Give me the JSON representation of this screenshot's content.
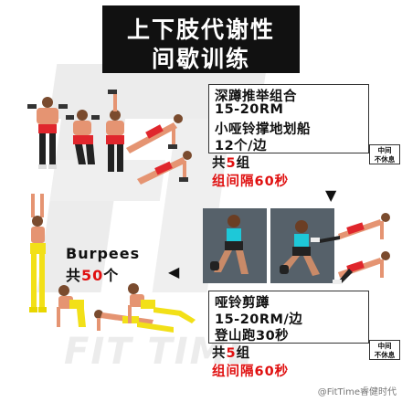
{
  "title": {
    "line1": "上下肢代谢性",
    "line2": "间歇训练"
  },
  "exercise_1": {
    "name": "深蹲推举组合",
    "reps": "15-20RM",
    "second_move": "小哑铃撑地划船",
    "count": "12个/边",
    "sets_prefix": "共",
    "sets_num": "5",
    "sets_suffix": "组",
    "rest": "组间隔60秒",
    "badge_line1": "中间",
    "badge_line2": "不休息"
  },
  "exercise_2": {
    "name": "哑铃剪蹲",
    "reps": "15-20RM/边",
    "second_move": "登山跑30秒",
    "sets_prefix": "共",
    "sets_num": "5",
    "sets_suffix": "组",
    "rest": "组间隔60秒",
    "badge_line1": "中间",
    "badge_line2": "不休息"
  },
  "burpees": {
    "name": "Burpees",
    "count_prefix": "共",
    "count_num": "50",
    "count_suffix": "个"
  },
  "watermark": {
    "brand": "FIT TIME",
    "credit": "@FitTime睿健时代"
  },
  "colors": {
    "accent_red": "#e01010",
    "title_bg": "#111111",
    "shorts_red": "#e0262c",
    "shoes_yellow": "#f2e018"
  }
}
